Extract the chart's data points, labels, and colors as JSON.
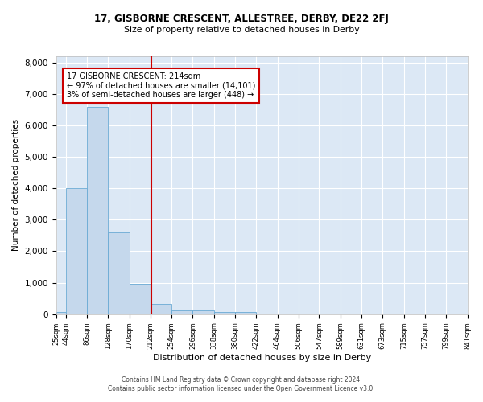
{
  "title": "17, GISBORNE CRESCENT, ALLESTREE, DERBY, DE22 2FJ",
  "subtitle": "Size of property relative to detached houses in Derby",
  "xlabel": "Distribution of detached houses by size in Derby",
  "ylabel": "Number of detached properties",
  "annotation_line1": "17 GISBORNE CRESCENT: 214sqm",
  "annotation_line2": "← 97% of detached houses are smaller (14,101)",
  "annotation_line3": "3% of semi-detached houses are larger (448) →",
  "footer_line1": "Contains HM Land Registry data © Crown copyright and database right 2024.",
  "footer_line2": "Contains public sector information licensed under the Open Government Licence v3.0.",
  "bar_color": "#c5d8ec",
  "bar_edge_color": "#6aaad4",
  "background_color": "#dce8f5",
  "property_line_x": 214,
  "annotation_box_color": "#cc0000",
  "bin_edges": [
    25,
    44,
    86,
    128,
    170,
    212,
    254,
    296,
    338,
    380,
    422,
    464,
    506,
    547,
    589,
    631,
    673,
    715,
    757,
    799,
    841
  ],
  "bar_heights": [
    70,
    4000,
    6600,
    2600,
    970,
    330,
    130,
    130,
    70,
    70,
    0,
    0,
    0,
    0,
    0,
    0,
    0,
    0,
    0,
    0
  ],
  "ylim": [
    0,
    8200
  ],
  "yticks": [
    0,
    1000,
    2000,
    3000,
    4000,
    5000,
    6000,
    7000,
    8000
  ],
  "tick_labels": [
    "25sqm",
    "44sqm",
    "86sqm",
    "128sqm",
    "170sqm",
    "212sqm",
    "254sqm",
    "296sqm",
    "338sqm",
    "380sqm",
    "422sqm",
    "464sqm",
    "506sqm",
    "547sqm",
    "589sqm",
    "631sqm",
    "673sqm",
    "715sqm",
    "757sqm",
    "799sqm",
    "841sqm"
  ]
}
